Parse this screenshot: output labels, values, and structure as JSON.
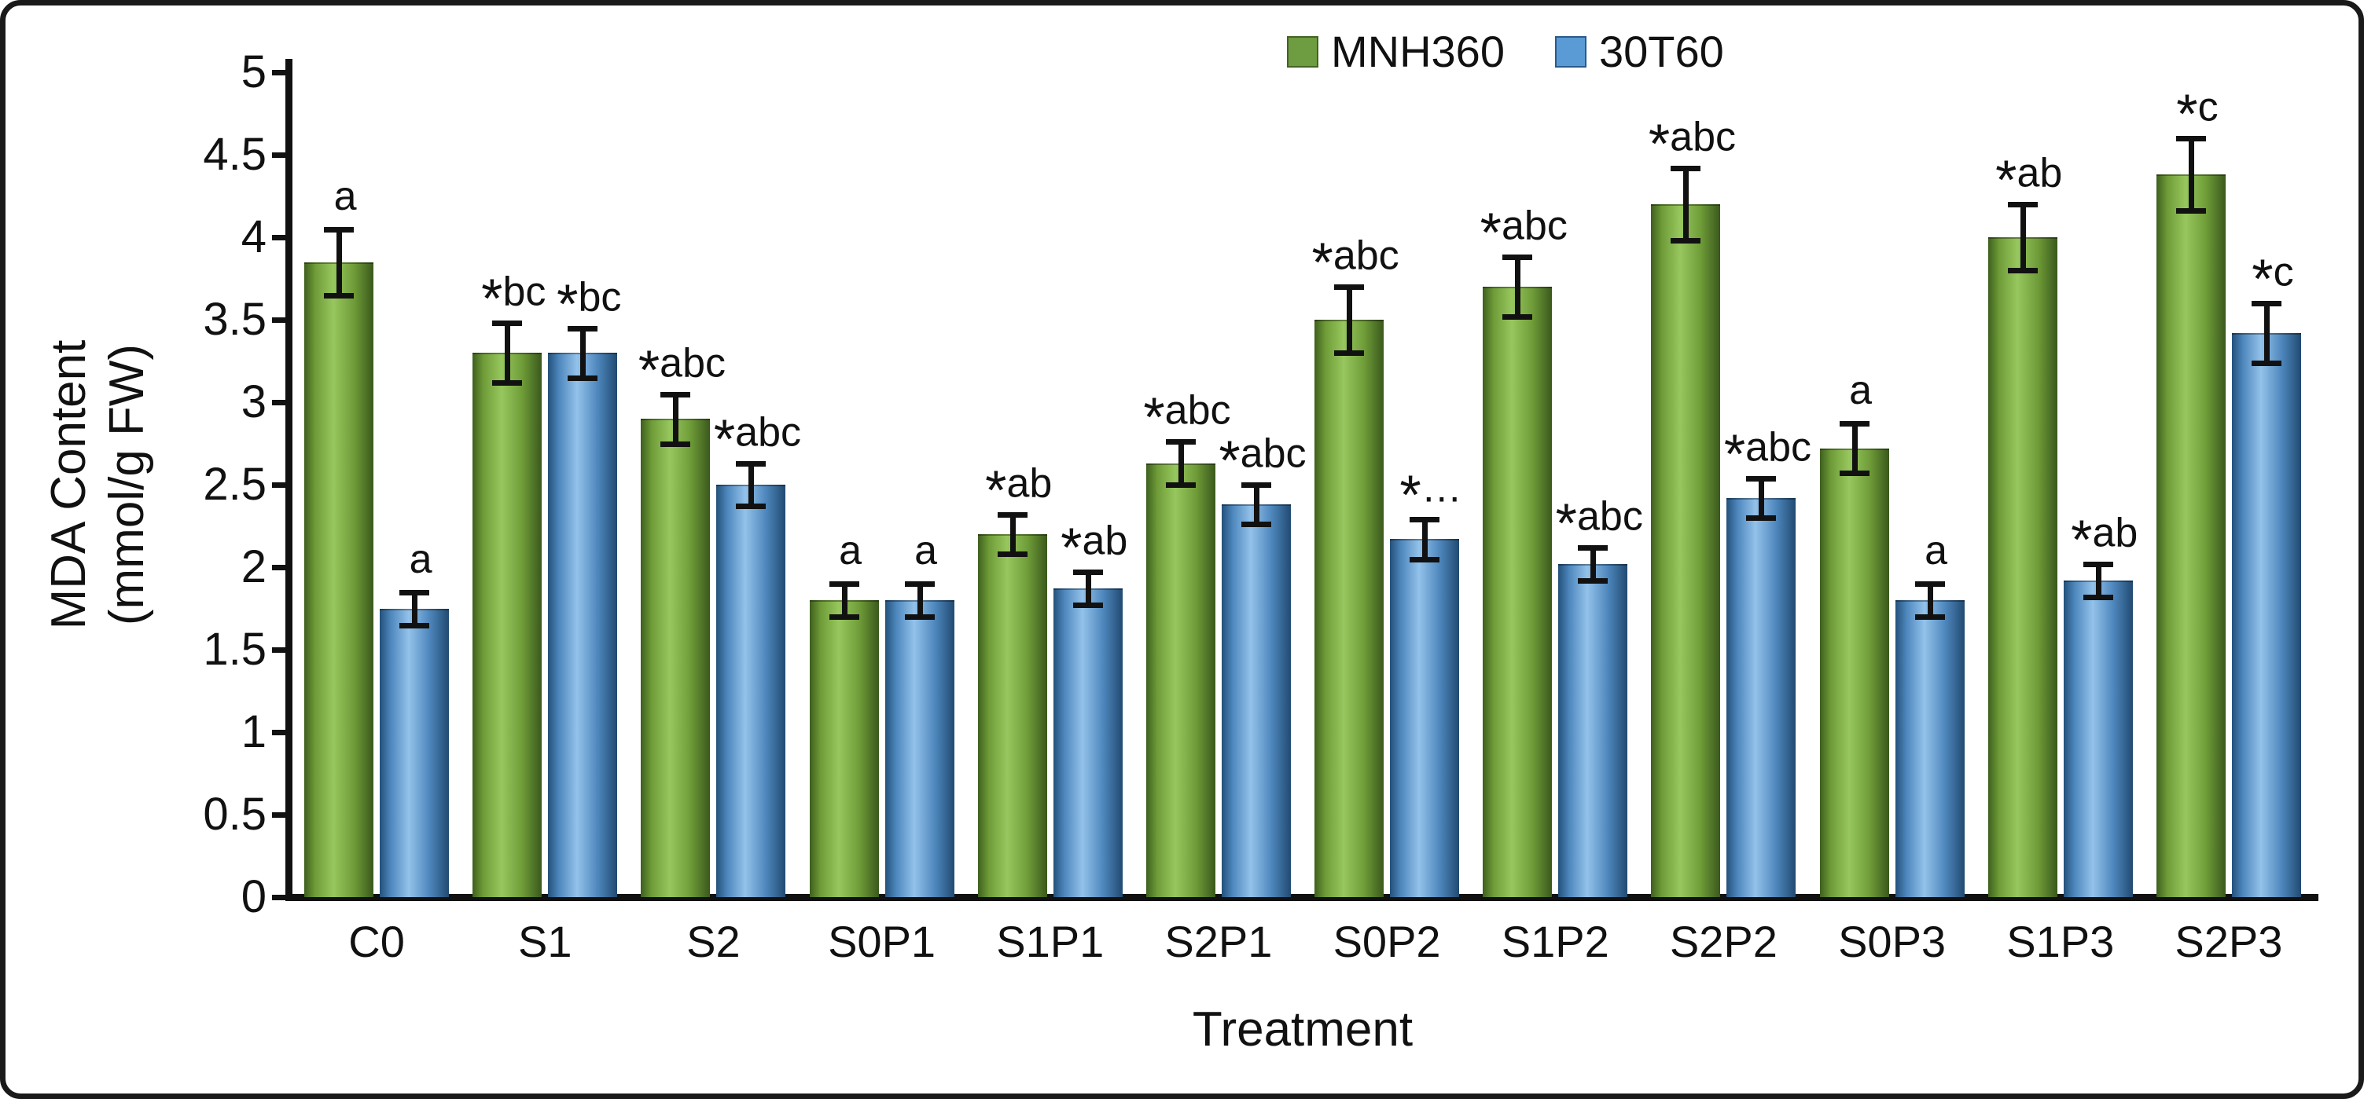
{
  "figure": {
    "x_title": "Treatment",
    "y_title_line1": "MDA Content",
    "y_title_line2": "(mmol/g FW)"
  },
  "chart_data": {
    "type": "bar",
    "title": "",
    "xlabel": "Treatment",
    "ylabel": "MDA Content (mmol/g FW)",
    "ylim": [
      0,
      5
    ],
    "ytick_step": 0.5,
    "yticks": [
      "0",
      "0.5",
      "1",
      "1.5",
      "2",
      "2.5",
      "3",
      "3.5",
      "4",
      "4.5",
      "5"
    ],
    "grid": false,
    "legend_position": "top",
    "categories": [
      "C0",
      "S1",
      "S2",
      "S0P1",
      "S1P1",
      "S2P1",
      "S0P2",
      "S1P2",
      "S2P2",
      "S0P3",
      "S1P3",
      "S2P3"
    ],
    "series": [
      {
        "name": "MNH360",
        "color": "#6d9c41",
        "border": "#446322",
        "values": [
          3.85,
          3.3,
          2.9,
          1.8,
          2.2,
          2.63,
          3.5,
          3.7,
          4.2,
          2.72,
          4.0,
          4.38
        ],
        "errors": [
          0.2,
          0.18,
          0.15,
          0.1,
          0.12,
          0.13,
          0.2,
          0.18,
          0.22,
          0.15,
          0.2,
          0.22
        ],
        "sig_labels": [
          "a",
          "*bc",
          "*abc",
          "a",
          "*ab",
          "*abc",
          "*abc",
          "*abc",
          "*abc",
          "a",
          "*ab",
          "*c"
        ]
      },
      {
        "name": "30T60",
        "color": "#5b9bd5",
        "border": "#2a5a8c",
        "values": [
          1.75,
          3.3,
          2.5,
          1.8,
          1.87,
          2.38,
          2.17,
          2.02,
          2.42,
          1.8,
          1.92,
          3.42
        ],
        "errors": [
          0.1,
          0.15,
          0.13,
          0.1,
          0.1,
          0.12,
          0.12,
          0.1,
          0.12,
          0.1,
          0.1,
          0.18
        ],
        "sig_labels": [
          "a",
          "*bc",
          "*abc",
          "a",
          "*ab",
          "*abc",
          "*…",
          "*abc",
          "*abc",
          "a",
          "*ab",
          "*c"
        ]
      }
    ]
  }
}
